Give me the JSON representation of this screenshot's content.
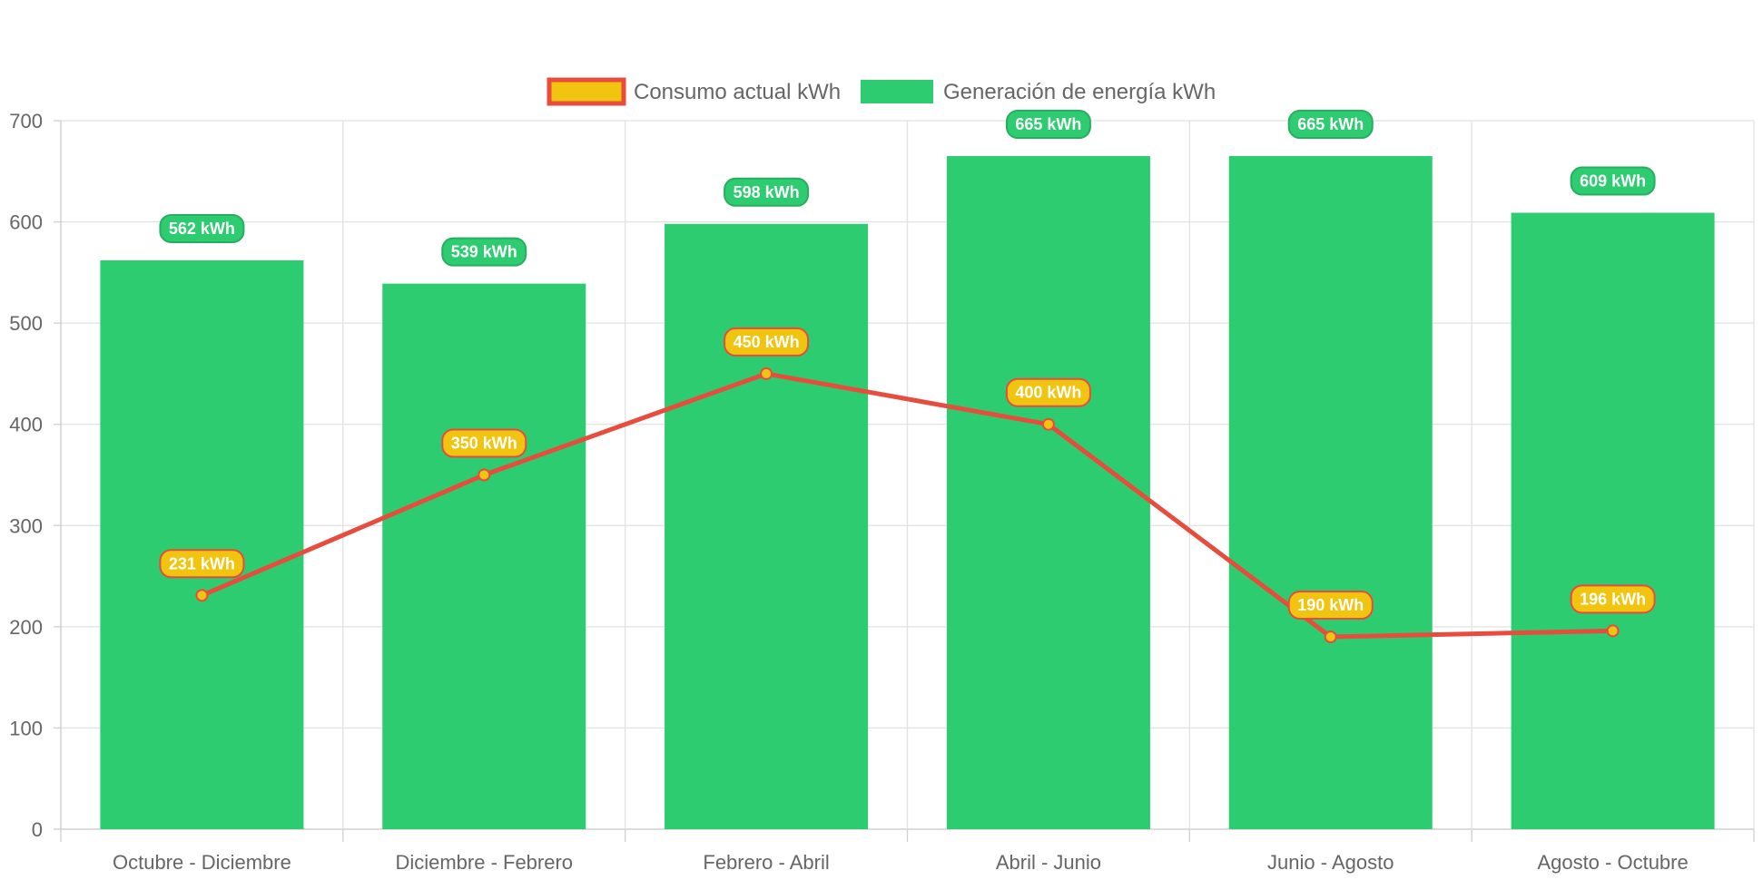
{
  "chart_data": {
    "type": "bar",
    "title": "",
    "xlabel": "",
    "ylabel": "",
    "ylim": [
      0,
      700
    ],
    "y_ticks": [
      "0",
      "100",
      "200",
      "300",
      "400",
      "500",
      "600",
      "700"
    ],
    "grid": true,
    "legend_position": "top-center",
    "categories": [
      "Octubre - Diciembre",
      "Diciembre - Febrero",
      "Febrero - Abril",
      "Abril - Junio",
      "Junio - Agosto",
      "Agosto - Octubre"
    ],
    "series": [
      {
        "name": "Consumo actual kWh",
        "type": "line",
        "values": [
          231,
          350,
          450,
          400,
          190,
          196
        ],
        "labels": [
          "231 kWh",
          "350 kWh",
          "450 kWh",
          "400 kWh",
          "190 kWh",
          "196 kWh"
        ],
        "color": "#e74c3c",
        "fill_color": "#f1c40f"
      },
      {
        "name": "Generación de energía kWh",
        "type": "bar",
        "values": [
          562,
          539,
          598,
          665,
          665,
          609
        ],
        "labels": [
          "562 kWh",
          "539 kWh",
          "598 kWh",
          "665 kWh",
          "665 kWh",
          "609 kWh"
        ],
        "color": "#2ecc71",
        "label_border": "#27ae60"
      }
    ]
  }
}
